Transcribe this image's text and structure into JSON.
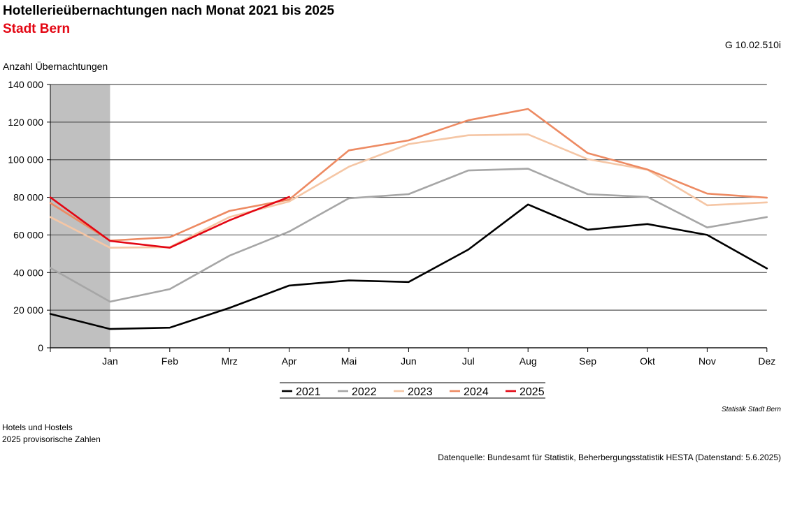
{
  "header": {
    "title": "Hotellerieübernachtungen nach Monat 2021 bis 2025",
    "subtitle": "Stadt Bern",
    "code": "G 10.02.510i"
  },
  "colors": {
    "subtitle": "#e30613",
    "grid": "#555555",
    "shade": "#c0c0c0",
    "series": {
      "2021": "#000000",
      "2022": "#a6a6a6",
      "2023": "#f5c6a5",
      "2024": "#ed8a62",
      "2025": "#e30613"
    }
  },
  "chart_data": {
    "type": "line",
    "ylabel": "Anzahl Übernachtungen",
    "ylim": [
      0,
      140000
    ],
    "yticks": [
      0,
      20000,
      40000,
      60000,
      80000,
      100000,
      120000,
      140000
    ],
    "ytick_labels": [
      "0",
      "20 000",
      "40 000",
      "60 000",
      "80 000",
      "100 000",
      "120 000",
      "140 000"
    ],
    "categories": [
      "Jan",
      "Feb",
      "Mrz",
      "Apr",
      "Mai",
      "Jun",
      "Jul",
      "Aug",
      "Sep",
      "Okt",
      "Nov",
      "Dez"
    ],
    "shaded_period": "previous Dez",
    "start_values": {
      "2021": 18000,
      "2022": 42500,
      "2023": 69500,
      "2024": 77000,
      "2025": 80000
    },
    "series": [
      {
        "name": "2021",
        "values": [
          10000,
          10700,
          21200,
          33100,
          35800,
          35000,
          52200,
          76200,
          62800,
          65800,
          60000,
          42200
        ]
      },
      {
        "name": "2022",
        "values": [
          24500,
          31200,
          49000,
          61800,
          79500,
          81700,
          94300,
          95200,
          81700,
          80200,
          64000,
          69500
        ]
      },
      {
        "name": "2023",
        "values": [
          53200,
          53500,
          69500,
          77800,
          96300,
          108300,
          113000,
          113500,
          100300,
          94700,
          75800,
          77300
        ]
      },
      {
        "name": "2024",
        "values": [
          57000,
          58800,
          72800,
          78800,
          105000,
          110300,
          121000,
          127000,
          103500,
          94800,
          82000,
          79800
        ]
      },
      {
        "name": "2025",
        "values": [
          56800,
          53200,
          67800,
          80200,
          null,
          null,
          null,
          null,
          null,
          null,
          null,
          null
        ]
      }
    ],
    "legend_position": "bottom-center",
    "grid": true
  },
  "footer": {
    "credit": "Statistik Stadt Bern",
    "note1": "Hotels und Hostels",
    "note2": "2025 provisorische Zahlen",
    "source": "Datenquelle: Bundesamt für Statistik, Beherbergungsstatistik HESTA (Datenstand: 5.6.2025)"
  }
}
